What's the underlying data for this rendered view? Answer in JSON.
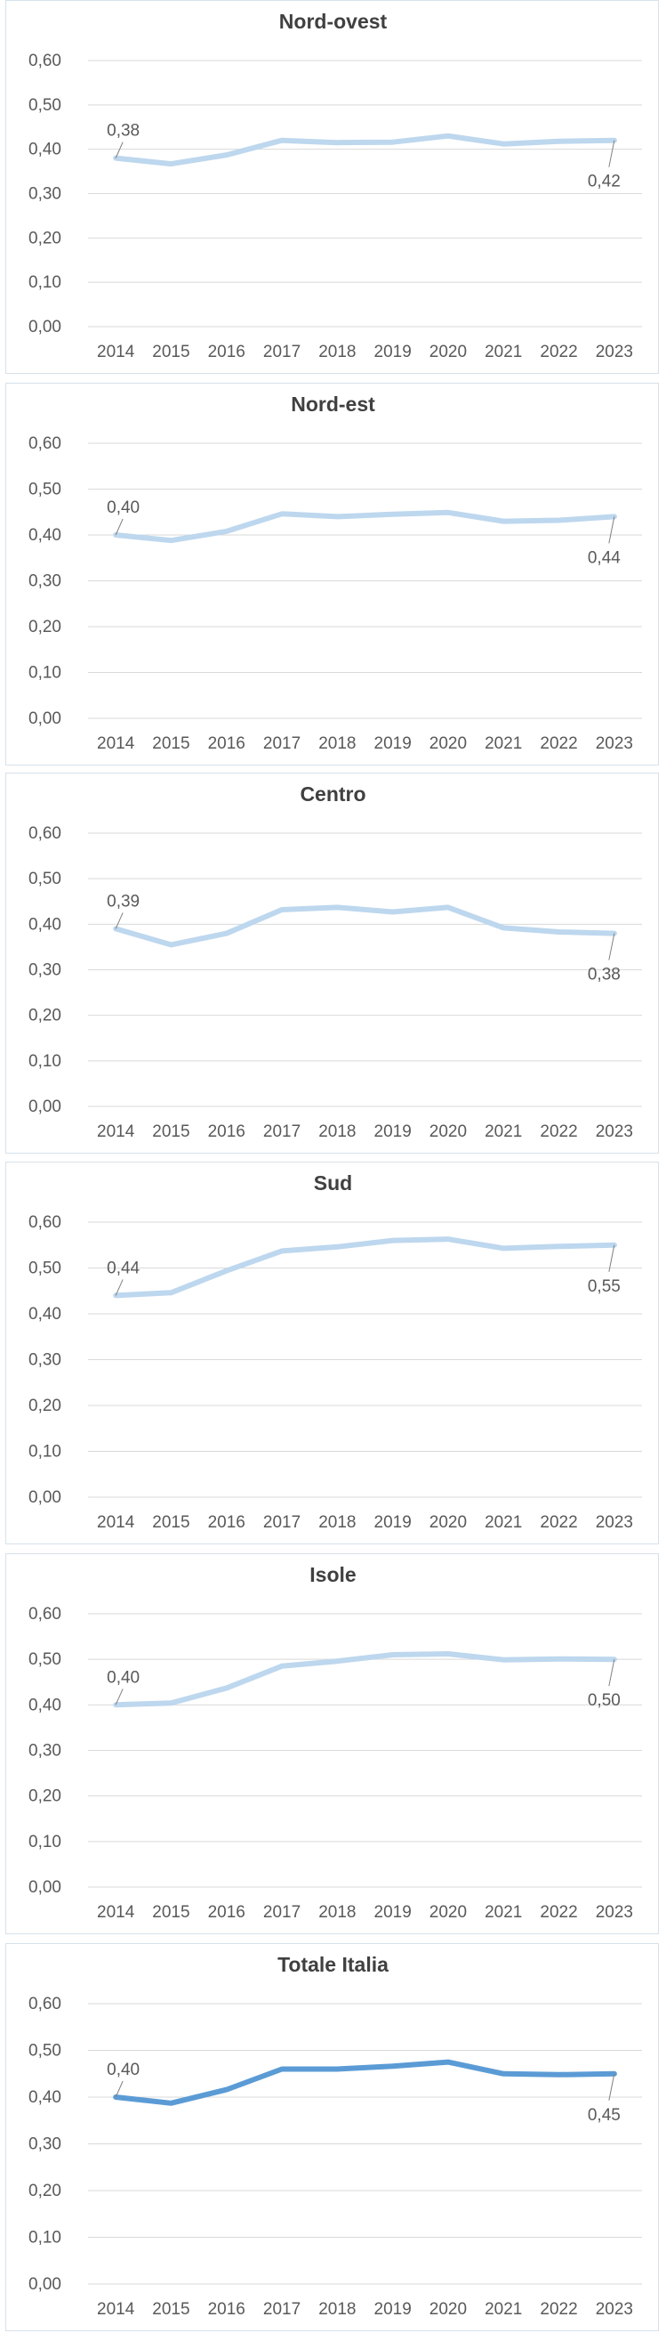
{
  "chart_data": [
    {
      "type": "line",
      "title": "Nord-ovest",
      "categories": [
        "2014",
        "2015",
        "2016",
        "2017",
        "2018",
        "2019",
        "2020",
        "2021",
        "2022",
        "2023"
      ],
      "values": [
        0.38,
        0.367,
        0.387,
        0.42,
        0.415,
        0.416,
        0.43,
        0.412,
        0.418,
        0.42
      ],
      "first_label": "0,38",
      "last_label": "0,42",
      "y_ticks": [
        "0,00",
        "0,10",
        "0,20",
        "0,30",
        "0,40",
        "0,50",
        "0,60"
      ],
      "ylim": [
        0,
        0.6
      ],
      "color": "#bdd7ee",
      "grid": true
    },
    {
      "type": "line",
      "title": "Nord-est",
      "categories": [
        "2014",
        "2015",
        "2016",
        "2017",
        "2018",
        "2019",
        "2020",
        "2021",
        "2022",
        "2023"
      ],
      "values": [
        0.4,
        0.388,
        0.408,
        0.446,
        0.44,
        0.445,
        0.449,
        0.43,
        0.432,
        0.44
      ],
      "first_label": "0,40",
      "last_label": "0,44",
      "y_ticks": [
        "0,00",
        "0,10",
        "0,20",
        "0,30",
        "0,40",
        "0,50",
        "0,60"
      ],
      "ylim": [
        0,
        0.6
      ],
      "color": "#bdd7ee",
      "grid": true
    },
    {
      "type": "line",
      "title": "Centro",
      "categories": [
        "2014",
        "2015",
        "2016",
        "2017",
        "2018",
        "2019",
        "2020",
        "2021",
        "2022",
        "2023"
      ],
      "values": [
        0.39,
        0.355,
        0.38,
        0.432,
        0.437,
        0.427,
        0.437,
        0.392,
        0.383,
        0.38
      ],
      "first_label": "0,39",
      "last_label": "0,38",
      "y_ticks": [
        "0,00",
        "0,10",
        "0,20",
        "0,30",
        "0,40",
        "0,50",
        "0,60"
      ],
      "ylim": [
        0,
        0.6
      ],
      "color": "#bdd7ee",
      "grid": true
    },
    {
      "type": "line",
      "title": "Sud",
      "categories": [
        "2014",
        "2015",
        "2016",
        "2017",
        "2018",
        "2019",
        "2020",
        "2021",
        "2022",
        "2023"
      ],
      "values": [
        0.44,
        0.446,
        0.494,
        0.537,
        0.546,
        0.56,
        0.563,
        0.543,
        0.547,
        0.55
      ],
      "first_label": "0,44",
      "last_label": "0,55",
      "y_ticks": [
        "0,00",
        "0,10",
        "0,20",
        "0,30",
        "0,40",
        "0,50",
        "0,60"
      ],
      "ylim": [
        0,
        0.6
      ],
      "color": "#bdd7ee",
      "grid": true
    },
    {
      "type": "line",
      "title": "Isole",
      "categories": [
        "2014",
        "2015",
        "2016",
        "2017",
        "2018",
        "2019",
        "2020",
        "2021",
        "2022",
        "2023"
      ],
      "values": [
        0.4,
        0.404,
        0.437,
        0.485,
        0.496,
        0.51,
        0.512,
        0.499,
        0.501,
        0.5
      ],
      "first_label": "0,40",
      "last_label": "0,50",
      "y_ticks": [
        "0,00",
        "0,10",
        "0,20",
        "0,30",
        "0,40",
        "0,50",
        "0,60"
      ],
      "ylim": [
        0,
        0.6
      ],
      "color": "#bdd7ee",
      "grid": true
    },
    {
      "type": "line",
      "title": "Totale Italia",
      "categories": [
        "2014",
        "2015",
        "2016",
        "2017",
        "2018",
        "2019",
        "2020",
        "2021",
        "2022",
        "2023"
      ],
      "values": [
        0.4,
        0.387,
        0.416,
        0.46,
        0.46,
        0.466,
        0.475,
        0.45,
        0.448,
        0.45
      ],
      "first_label": "0,40",
      "last_label": "0,45",
      "y_ticks": [
        "0,00",
        "0,10",
        "0,20",
        "0,30",
        "0,40",
        "0,50",
        "0,60"
      ],
      "ylim": [
        0,
        0.6
      ],
      "color": "#5b9bd5",
      "grid": true
    }
  ]
}
